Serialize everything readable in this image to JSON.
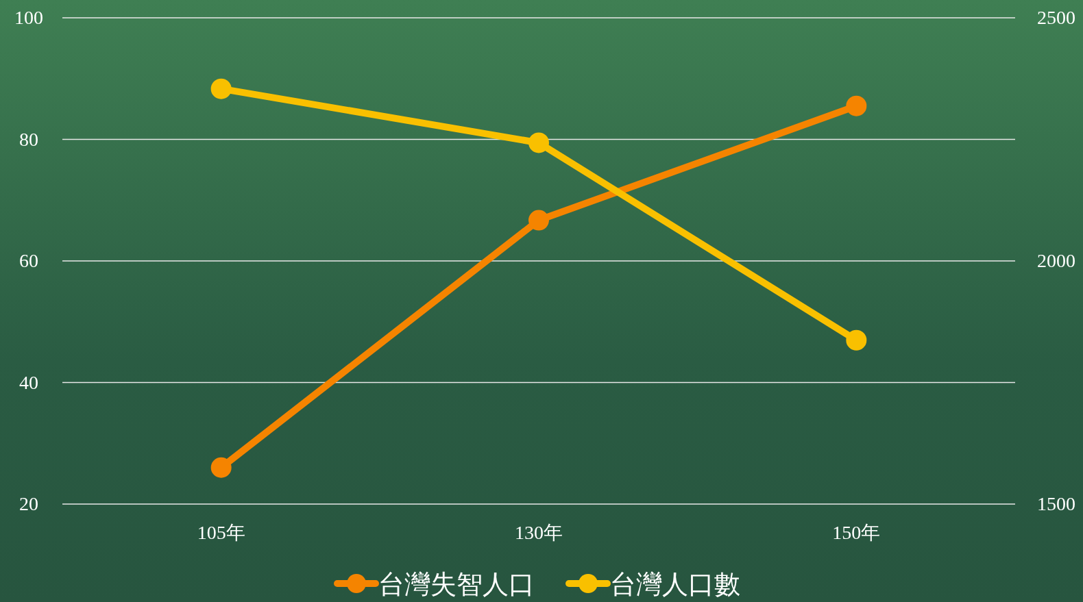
{
  "chart_data": {
    "type": "line",
    "categories": [
      "105年",
      "130年",
      "150年"
    ],
    "series": [
      {
        "name": "台灣失智人口",
        "color": "#f58400",
        "values": [
          26.0,
          66.7,
          85.5
        ]
      },
      {
        "name": "台灣人口數",
        "color": "#f9c000",
        "values": [
          2354,
          2243,
          1837
        ],
        "axis": "y2"
      }
    ],
    "ylim": [
      20,
      100
    ],
    "yticks": [
      20,
      40,
      60,
      80,
      100
    ],
    "y2lim": [
      1500,
      2500
    ],
    "y2ticks": [
      1500,
      2000,
      2500
    ],
    "grid": "y",
    "legend": "bottom",
    "marker": "circle",
    "line_style": "solid"
  }
}
